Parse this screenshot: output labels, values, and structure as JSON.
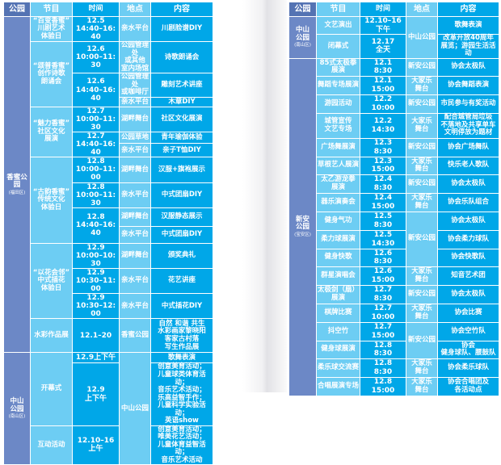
{
  "headers": [
    "公园",
    "节目",
    "时间",
    "地点",
    "内容"
  ],
  "colors": {
    "park": "#6c88c6",
    "header_park": "#5473b3",
    "light": "#6dcdf3",
    "dark": "#00a7e8"
  },
  "left": {
    "rows": [
      [
        {
          "col": "park",
          "name": "香蜜公园",
          "district": "(福田区)",
          "rs": 15
        },
        {
          "col": "prog",
          "text": "“百变香蜜”\n川剧艺术\n体验日"
        },
        {
          "col": "time",
          "text": "12.5\n14:40–16:40"
        },
        {
          "col": "place",
          "text": "亲水平台"
        },
        {
          "col": "content",
          "text": "川剧脸谱DIY"
        }
      ],
      [
        {
          "col": "prog",
          "text": "“颂普香蜜”\n创作诗歌\n朗诵会",
          "rs": 3
        },
        {
          "col": "time",
          "text": "12.6\n10:00–11:30"
        },
        {
          "col": "place",
          "text": "公园管理处\n或其他\n室内场馆"
        },
        {
          "col": "content",
          "text": "诗歌朗诵会"
        }
      ],
      [
        {
          "col": "time",
          "text": "12.6\n14:40–16:40",
          "rs": 2
        },
        {
          "col": "place",
          "text": "公园管理处\n或咖啡厅"
        },
        {
          "col": "content",
          "text": "雕刻艺术讲座"
        }
      ],
      [
        {
          "col": "place",
          "text": "亲水平台"
        },
        {
          "col": "content",
          "text": "木章DIY"
        }
      ],
      [
        {
          "col": "prog",
          "text": "“魅力香蜜”\n社区文化\n展演",
          "rs": 3
        },
        {
          "col": "time",
          "text": "12.7\n10:00–11:30"
        },
        {
          "col": "place",
          "text": "湖畔舞台"
        },
        {
          "col": "content",
          "text": "社区文化展演"
        }
      ],
      [
        {
          "col": "time",
          "text": "12.7\n14:40–16:40",
          "rs": 2
        },
        {
          "col": "place",
          "text": "公园草地"
        },
        {
          "col": "content",
          "text": "青年瑜伽体验"
        }
      ],
      [
        {
          "col": "place",
          "text": "亲水平台"
        },
        {
          "col": "content",
          "text": "亲子T恤DIY"
        }
      ],
      [
        {
          "col": "prog",
          "text": "“古韵香蜜”\n传统文化\n体验日",
          "rs": 4
        },
        {
          "col": "time",
          "text": "12.8\n10:00–11:00"
        },
        {
          "col": "place",
          "text": "湖畔舞台"
        },
        {
          "col": "content",
          "text": "汉服+旗袍展示"
        }
      ],
      [
        {
          "col": "time",
          "text": "12.8\n10:00–11:30"
        },
        {
          "col": "place",
          "text": "亲水平台"
        },
        {
          "col": "content",
          "text": "中式团扇DIY"
        }
      ],
      [
        {
          "col": "time",
          "text": "12.8\n14:40–16:40",
          "rs": 2
        },
        {
          "col": "place",
          "text": "湖畔舞台"
        },
        {
          "col": "content",
          "text": "汉服静态展示"
        }
      ],
      [
        {
          "col": "place",
          "text": "亲水平台"
        },
        {
          "col": "content",
          "text": "中式团扇DIY"
        }
      ],
      [
        {
          "col": "prog",
          "text": "“以花会邻”\n中式插花\n体验日",
          "rs": 3
        },
        {
          "col": "time",
          "text": "12.9\n10:00–10:30"
        },
        {
          "col": "place",
          "text": "湖畔舞台"
        },
        {
          "col": "content",
          "text": "颁奖典礼"
        }
      ],
      [
        {
          "col": "time",
          "text": "12.9\n10:30–11:00"
        },
        {
          "col": "place",
          "text": "亲水平台"
        },
        {
          "col": "content",
          "text": "花艺讲座"
        }
      ],
      [
        {
          "col": "time",
          "text": "12.9\n10:30–12:00"
        },
        {
          "col": "place",
          "text": "亲水平台"
        },
        {
          "col": "content",
          "text": "中式插花DIY"
        }
      ],
      [
        {
          "col": "prog",
          "text": "水彩作品展"
        },
        {
          "col": "time",
          "text": "12.1–20"
        },
        {
          "col": "place",
          "text": "香蜜公园"
        },
        {
          "col": "content",
          "text": "自然 和谐 共生\n水彩画家黎晓阳\n客家古村落\n写生作品展"
        }
      ],
      [
        {
          "col": "park",
          "name": "中山\n公园",
          "district": "(南山区)",
          "rs": 3
        },
        {
          "col": "prog",
          "text": "开幕式",
          "rs": 2
        },
        {
          "col": "time",
          "text": "12.9上下午"
        },
        {
          "col": "place",
          "text": "中山公园",
          "rs": 3
        },
        {
          "col": "content",
          "text": "歌舞表演"
        }
      ],
      [
        {
          "col": "time",
          "text": "12.9\n上下午"
        },
        {
          "col": "content",
          "text": "创意美育活动；\n儿童球类体育活动；\n音乐艺术活动；\n乐高益智手作；\n儿童科学实验活动；\n英语show"
        }
      ],
      [
        {
          "col": "prog",
          "text": "互动活动"
        },
        {
          "col": "time",
          "text": "12.10–16\n上午"
        },
        {
          "col": "content",
          "text": "创意美育活动；\n唯美花艺活动；\n儿童体育益智活动；\n音乐艺术活动"
        }
      ]
    ]
  },
  "right": {
    "rows": [
      [
        {
          "col": "park",
          "name": "中山\n公园",
          "district": "(南山区)",
          "rs": 2
        },
        {
          "col": "prog",
          "text": "文艺演出"
        },
        {
          "col": "time",
          "text": "12.10–16\n下午"
        },
        {
          "col": "place",
          "text": "中山公园",
          "rs": 2
        },
        {
          "col": "content",
          "text": "歌舞表演"
        }
      ],
      [
        {
          "col": "prog",
          "text": "闭幕式"
        },
        {
          "col": "time",
          "text": "12.17\n全天"
        },
        {
          "col": "content",
          "text": "改革开放40周年\n展览；游园生活活动"
        }
      ],
      [
        {
          "col": "park",
          "name": "新安\n公园",
          "district": "(宝安区)",
          "rs": 18
        },
        {
          "col": "prog",
          "text": "85式太极拳\n展演"
        },
        {
          "col": "time",
          "text": "12.1\n8:30"
        },
        {
          "col": "place",
          "text": "新安公园"
        },
        {
          "col": "content",
          "text": "协会太极队"
        }
      ],
      [
        {
          "col": "prog",
          "text": "舞蹈专场展演"
        },
        {
          "col": "time",
          "text": "12.1\n15:00"
        },
        {
          "col": "place",
          "text": "大家乐\n舞台"
        },
        {
          "col": "content",
          "text": "协会舞蹈表演"
        }
      ],
      [
        {
          "col": "prog",
          "text": "游园活动"
        },
        {
          "col": "time",
          "text": "12.2\n10:00"
        },
        {
          "col": "place",
          "text": "新安公园"
        },
        {
          "col": "content",
          "text": "市民参与有奖活动"
        }
      ],
      [
        {
          "col": "prog",
          "text": "城管宣传\n文艺专场"
        },
        {
          "col": "time",
          "text": "12.2\n14:30"
        },
        {
          "col": "place",
          "text": "大家乐\n舞台"
        },
        {
          "col": "content",
          "text": "配合城管局垃圾\n不落地及共享单车\n文明停放为题材"
        }
      ],
      [
        {
          "col": "prog",
          "text": "广场舞展演"
        },
        {
          "col": "time",
          "text": "12.3\n8:30"
        },
        {
          "col": "place",
          "text": "新安公园"
        },
        {
          "col": "content",
          "text": "协会广场舞队"
        }
      ],
      [
        {
          "col": "prog",
          "text": "草根艺人展演"
        },
        {
          "col": "time",
          "text": "12.3\n15:00"
        },
        {
          "col": "place",
          "text": "大家乐\n舞台"
        },
        {
          "col": "content",
          "text": "快乐老人歌队"
        }
      ],
      [
        {
          "col": "prog",
          "text": "太乙游龙拳\n展演"
        },
        {
          "col": "time",
          "text": "12.4\n8:30"
        },
        {
          "col": "place",
          "text": "新安公园"
        },
        {
          "col": "content",
          "text": "协会太极队"
        }
      ],
      [
        {
          "col": "prog",
          "text": "器乐演奏会"
        },
        {
          "col": "time",
          "text": "12.4\n15:00"
        },
        {
          "col": "place",
          "text": "大家乐\n舞台"
        },
        {
          "col": "content",
          "text": "协会乐队组合"
        }
      ],
      [
        {
          "col": "prog",
          "text": "健身气功"
        },
        {
          "col": "time",
          "text": "12.5\n8:30"
        },
        {
          "col": "place",
          "text": "新安公园",
          "rs": 3
        },
        {
          "col": "content",
          "text": "协会太极队"
        }
      ],
      [
        {
          "col": "prog",
          "text": "柔力球展演"
        },
        {
          "col": "time",
          "text": "12.5\n14:30"
        },
        {
          "col": "content",
          "text": "协会柔力球队"
        }
      ],
      [
        {
          "col": "prog",
          "text": "健身快歌"
        },
        {
          "col": "time",
          "text": "12.6\n8:30"
        },
        {
          "col": "content",
          "text": "协会快歌队"
        }
      ],
      [
        {
          "col": "prog",
          "text": "群星演唱会"
        },
        {
          "col": "time",
          "text": "12.6\n15:00"
        },
        {
          "col": "place",
          "text": "大家乐\n舞台"
        },
        {
          "col": "content",
          "text": "知音艺术团"
        }
      ],
      [
        {
          "col": "prog",
          "text": "太极剑（扇）\n展演"
        },
        {
          "col": "time",
          "text": "12.7\n8:30"
        },
        {
          "col": "place",
          "text": "新安公园"
        },
        {
          "col": "content",
          "text": "协会太极队"
        }
      ],
      [
        {
          "col": "prog",
          "text": "棋牌比赛"
        },
        {
          "col": "time",
          "text": "12.7\n10:00"
        },
        {
          "col": "place",
          "text": "大家乐\n舞台"
        },
        {
          "col": "content",
          "text": "协会比赛"
        }
      ],
      [
        {
          "col": "prog",
          "text": "抖空竹"
        },
        {
          "col": "time",
          "text": "12.7\n15:00"
        },
        {
          "col": "place",
          "text": "新安公园",
          "rs": 2
        },
        {
          "col": "content",
          "text": "协会空竹队"
        }
      ],
      [
        {
          "col": "prog",
          "text": "健身球展演"
        },
        {
          "col": "time",
          "text": "12.8\n8:30"
        },
        {
          "col": "content",
          "text": "协会\n健身球队、腰鼓队"
        }
      ],
      [
        {
          "col": "prog",
          "text": "柔乐球交流赛"
        },
        {
          "col": "time",
          "text": "12.8\n8:30"
        },
        {
          "col": "place",
          "text": "大家乐\n舞台"
        },
        {
          "col": "content",
          "text": "协会柔乐球队"
        }
      ],
      [
        {
          "col": "prog",
          "text": "合唱展演专场"
        },
        {
          "col": "time",
          "text": "12.8\n15:00"
        },
        {
          "col": "place",
          "text": "大家乐\n舞台"
        },
        {
          "col": "content",
          "text": "协会合唱团及\n各活动点"
        }
      ]
    ]
  }
}
